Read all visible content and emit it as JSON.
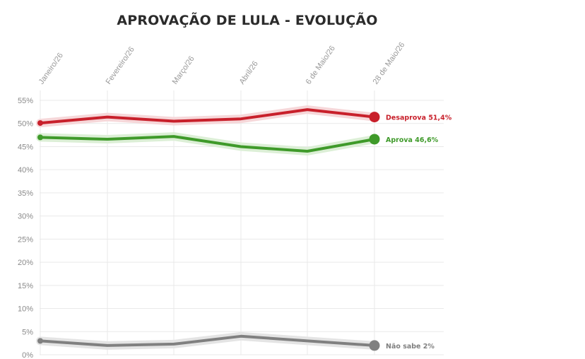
{
  "chart_data": {
    "type": "line",
    "title": "APROVAÇÃO DE LULA - EVOLUÇÃO",
    "x": [
      "Janeiro/26",
      "Fevereiro/26",
      "Março/26",
      "Abril/26",
      "6 de Maio/26",
      "28 de Maio/26"
    ],
    "ylim": [
      0,
      55
    ],
    "yticks": [
      0,
      5,
      10,
      15,
      20,
      25,
      30,
      35,
      40,
      45,
      50,
      55
    ],
    "ytick_suffix": "%",
    "grid": true,
    "series": [
      {
        "key": "desaprova",
        "values": [
          50.1,
          51.4,
          50.5,
          51.0,
          53.0,
          51.4
        ],
        "color": "#c8202b",
        "halo": "#f6d7d9",
        "label": "Desaprova 51,4%"
      },
      {
        "key": "aprova",
        "values": [
          47.0,
          46.6,
          47.2,
          45.0,
          44.0,
          46.6
        ],
        "color": "#3f9a2a",
        "halo": "#dcefd6",
        "label": "Aprova 46,6%"
      },
      {
        "key": "nao_sabe",
        "values": [
          3.0,
          2.0,
          2.3,
          4.0,
          3.0,
          2.0
        ],
        "color": "#808080",
        "halo": "#e4e4e4",
        "label": "Não sabe 2%"
      }
    ]
  }
}
